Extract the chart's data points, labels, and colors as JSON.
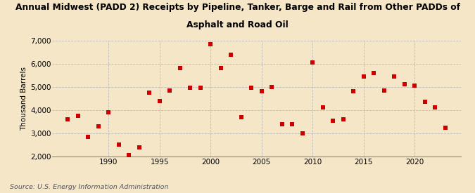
{
  "title_line1": "Annual Midwest (PADD 2) Receipts by Pipeline, Tanker, Barge and Rail from Other PADDs of",
  "title_line2": "Asphalt and Road Oil",
  "ylabel": "Thousand Barrels",
  "source": "Source: U.S. Energy Information Administration",
  "years": [
    1986,
    1987,
    1988,
    1989,
    1990,
    1991,
    1992,
    1993,
    1994,
    1995,
    1996,
    1997,
    1998,
    1999,
    2000,
    2001,
    2002,
    2003,
    2004,
    2005,
    2006,
    2007,
    2008,
    2009,
    2010,
    2011,
    2012,
    2013,
    2014,
    2015,
    2016,
    2017,
    2018,
    2019,
    2020,
    2021,
    2022,
    2023
  ],
  "values": [
    3600,
    3750,
    2850,
    3300,
    3900,
    2500,
    2050,
    2400,
    4750,
    4400,
    4850,
    5800,
    4950,
    4950,
    6850,
    5800,
    6400,
    3700,
    4950,
    4800,
    5000,
    3400,
    3400,
    3000,
    6050,
    4100,
    3550,
    3600,
    4800,
    5450,
    5600,
    4850,
    5450,
    5100,
    5050,
    4350,
    4100,
    3250
  ],
  "marker_color": "#cc0000",
  "bg_color": "#f5e6c8",
  "plot_bg_color": "#f5e6c8",
  "grid_color": "#bbbbbb",
  "ylim": [
    2000,
    7000
  ],
  "yticks": [
    2000,
    3000,
    4000,
    5000,
    6000,
    7000
  ],
  "xlim": [
    1984.5,
    2024.5
  ],
  "xticks": [
    1990,
    1995,
    2000,
    2005,
    2010,
    2015,
    2020
  ],
  "title_fontsize": 8.8,
  "tick_fontsize": 7.5,
  "ylabel_fontsize": 7.5,
  "source_fontsize": 6.8
}
